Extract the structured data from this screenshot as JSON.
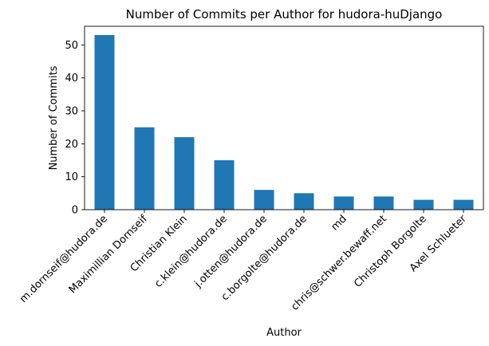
{
  "chart_data": {
    "type": "bar",
    "title": "Number of Commits per Author for hudora-huDjango",
    "xlabel": "Author",
    "ylabel": "Number of Commits",
    "categories": [
      "m.dornseif@hudora.de",
      "Maximillian Dornseif",
      "Christian Klein",
      "c.klein@hudora.de",
      "j.otten@hudora.de",
      "c.borgolte@hudora.de",
      "md",
      "chris@schwer.bewaff.net",
      "Christoph Borgolte",
      "Axel Schlueter"
    ],
    "values": [
      53,
      25,
      22,
      15,
      6,
      5,
      4,
      4,
      3,
      3
    ],
    "ylim": [
      0,
      55.65
    ],
    "yticks": [
      0,
      10,
      20,
      30,
      40,
      50
    ],
    "bar_color": "#1f77b4",
    "grid": false,
    "legend": "none"
  }
}
